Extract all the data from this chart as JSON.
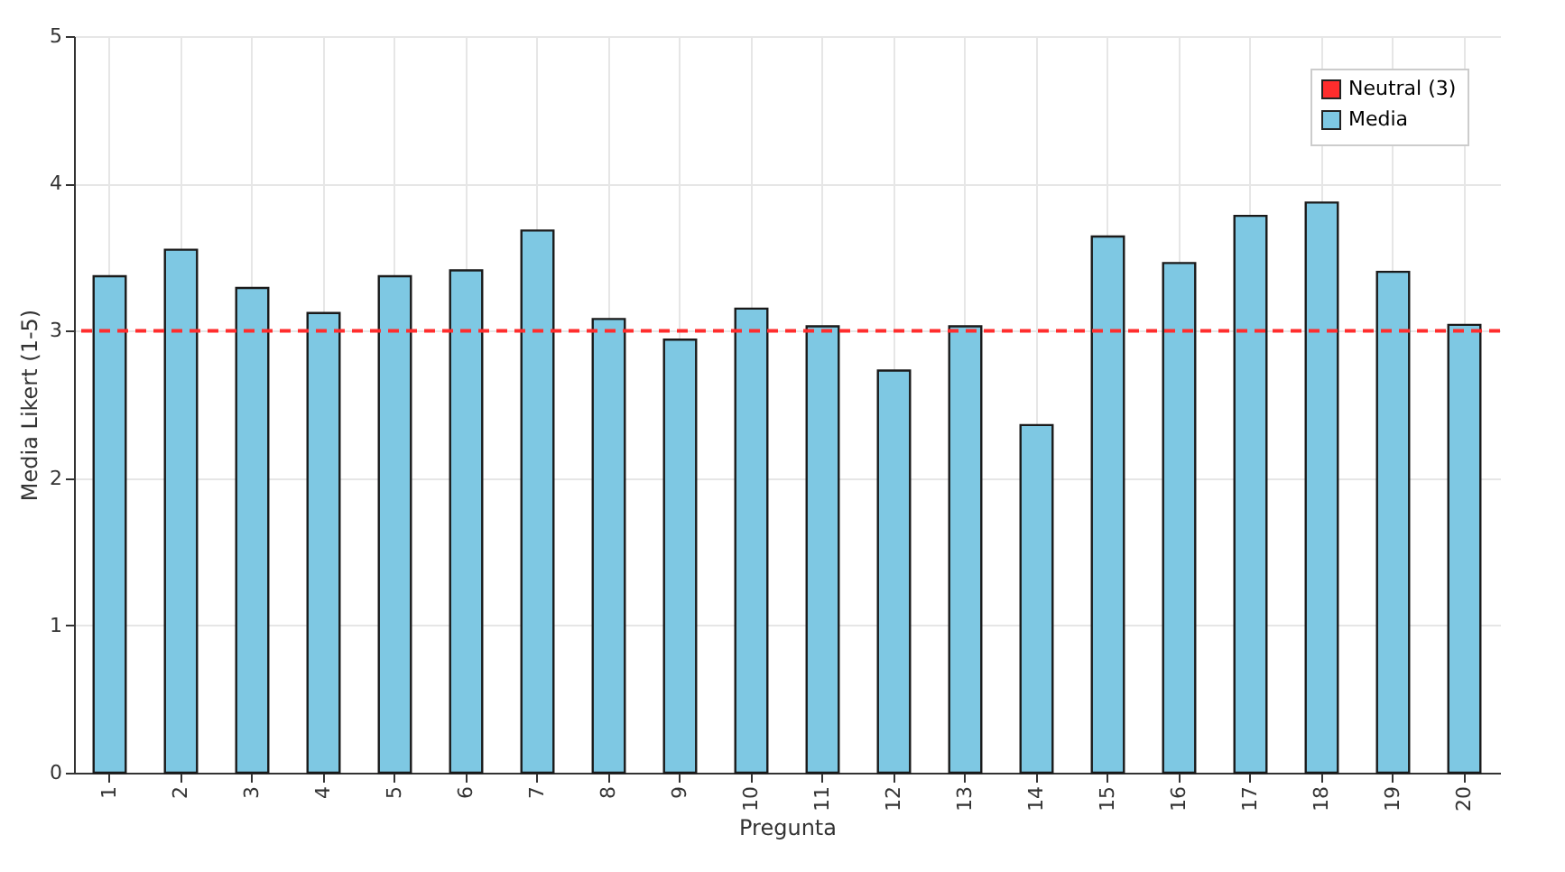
{
  "chart_data": {
    "type": "bar",
    "xlabel": "Pregunta",
    "ylabel": "Media Likert (1-5)",
    "categories": [
      "1",
      "2",
      "3",
      "4",
      "5",
      "6",
      "7",
      "8",
      "9",
      "10",
      "11",
      "12",
      "13",
      "14",
      "15",
      "16",
      "17",
      "18",
      "19",
      "20"
    ],
    "series": [
      {
        "name": "Media",
        "color": "#7ec8e3",
        "values": [
          3.37,
          3.55,
          3.29,
          3.12,
          3.37,
          3.41,
          3.68,
          3.08,
          2.94,
          3.15,
          3.03,
          2.73,
          3.03,
          2.36,
          3.64,
          3.46,
          3.78,
          3.87,
          3.4,
          3.04
        ]
      }
    ],
    "ylim": [
      0,
      5
    ],
    "yticks": [
      0,
      1,
      2,
      3,
      4,
      5
    ],
    "grid": true,
    "legend": "top right",
    "ref_lines": [
      {
        "axis": "y",
        "value": 3,
        "label": "Neutral (3)",
        "color": "#ff2d2d",
        "line_style": "dashed"
      }
    ]
  }
}
